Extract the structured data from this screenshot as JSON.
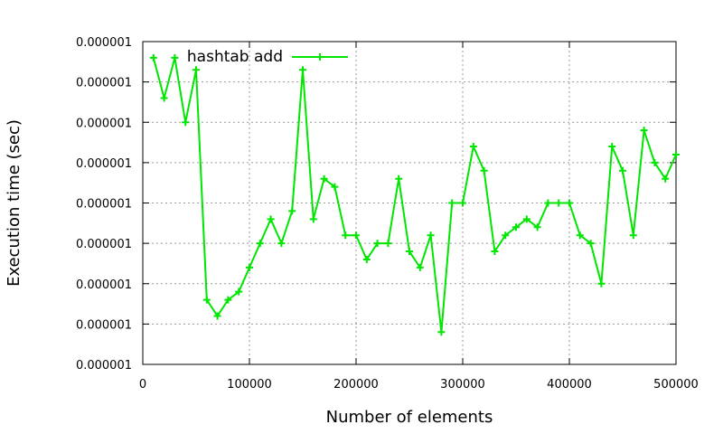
{
  "chart_data": {
    "type": "line",
    "xlabel": "Number of elements",
    "ylabel": "Execution time (sec)",
    "xlim": [
      0,
      500000
    ],
    "ylim": [
      0,
      8
    ],
    "x_ticks": [
      0,
      100000,
      200000,
      300000,
      400000,
      500000
    ],
    "x_tick_labels": [
      "0",
      "100000",
      "200000",
      "300000",
      "400000",
      "500000"
    ],
    "y_ticks": [
      0,
      1,
      2,
      3,
      4,
      5,
      6,
      7,
      8
    ],
    "y_tick_labels": [
      "0.000001",
      "0.000001",
      "0.000001",
      "0.000001",
      "0.000001",
      "0.000001",
      "0.000001",
      "0.000001",
      "0.000001"
    ],
    "grid": true,
    "legend_position": "top-left",
    "series_color": "#00e600",
    "series": [
      {
        "name": "hashtab add",
        "x": [
          10000,
          20000,
          30000,
          40000,
          50000,
          60000,
          70000,
          80000,
          90000,
          100000,
          110000,
          120000,
          130000,
          140000,
          150000,
          160000,
          170000,
          180000,
          190000,
          200000,
          210000,
          220000,
          230000,
          240000,
          250000,
          260000,
          270000,
          280000,
          290000,
          300000,
          310000,
          320000,
          330000,
          340000,
          350000,
          360000,
          370000,
          380000,
          390000,
          400000,
          410000,
          420000,
          430000,
          440000,
          450000,
          460000,
          470000,
          480000,
          490000,
          500000
        ],
        "y": [
          7.6,
          6.6,
          7.6,
          6.0,
          7.3,
          1.6,
          1.2,
          1.6,
          1.8,
          2.4,
          3.0,
          3.6,
          3.0,
          3.8,
          7.3,
          3.6,
          4.6,
          4.4,
          3.2,
          3.2,
          2.6,
          3.0,
          3.0,
          4.6,
          2.8,
          2.4,
          3.2,
          0.8,
          4.0,
          4.0,
          5.4,
          4.8,
          2.8,
          3.2,
          3.4,
          3.6,
          3.4,
          4.0,
          4.0,
          4.0,
          3.2,
          3.0,
          2.0,
          5.4,
          4.8,
          3.2,
          5.8,
          5.0,
          4.6,
          5.2
        ]
      }
    ]
  }
}
